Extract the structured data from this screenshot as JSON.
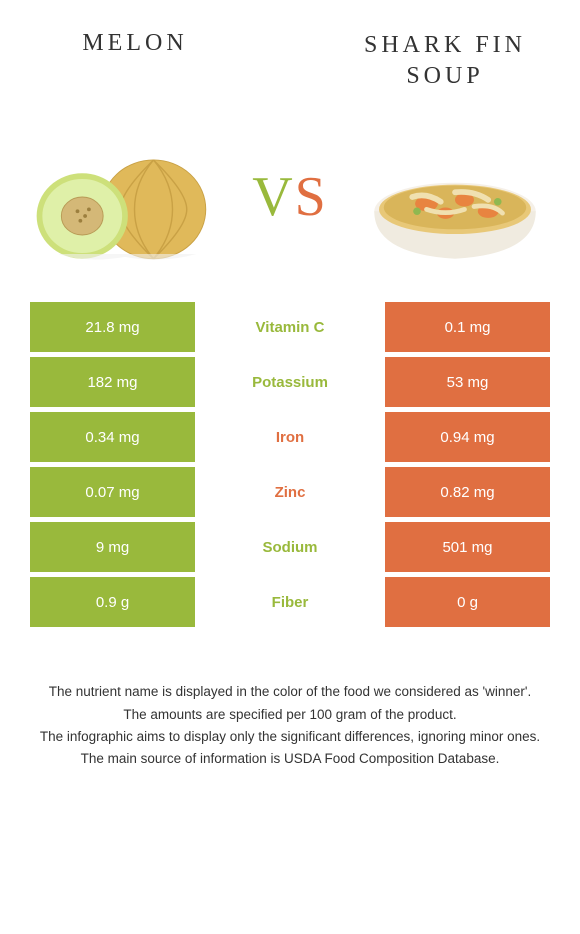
{
  "titles": {
    "left": "MELON",
    "right": "SHARK FIN SOUP"
  },
  "vs": {
    "v": "V",
    "s": "S"
  },
  "colors": {
    "left_bg": "#99b93c",
    "right_bg": "#e06f41",
    "left_text": "#99b93c",
    "right_text": "#e06f41",
    "body_text": "#333333"
  },
  "rows": [
    {
      "left": "21.8 mg",
      "name": "Vitamin C",
      "right": "0.1 mg",
      "winner": "left"
    },
    {
      "left": "182 mg",
      "name": "Potassium",
      "right": "53 mg",
      "winner": "left"
    },
    {
      "left": "0.34 mg",
      "name": "Iron",
      "right": "0.94 mg",
      "winner": "right"
    },
    {
      "left": "0.07 mg",
      "name": "Zinc",
      "right": "0.82 mg",
      "winner": "right"
    },
    {
      "left": "9 mg",
      "name": "Sodium",
      "right": "501 mg",
      "winner": "left"
    },
    {
      "left": "0.9 g",
      "name": "Fiber",
      "right": "0 g",
      "winner": "left"
    }
  ],
  "footer": [
    "The nutrient name is displayed in the color of the food we considered as 'winner'.",
    "The amounts are specified per 100 gram of the product.",
    "The infographic aims to display only the significant differences, ignoring minor ones.",
    "The main source of information is USDA Food Composition Database."
  ]
}
